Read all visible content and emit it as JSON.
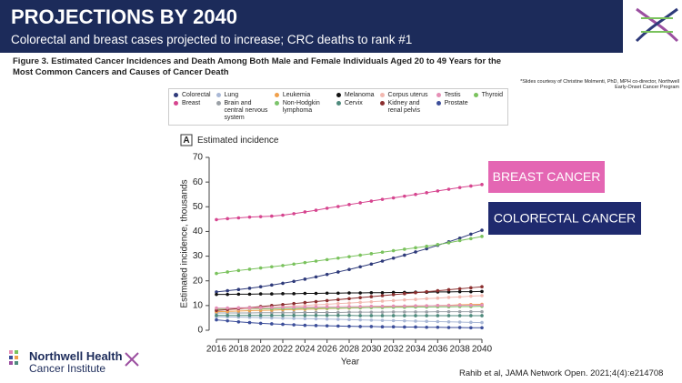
{
  "header": {
    "title": "PROJECTIONS BY 2040",
    "subtitle": "Colorectal and breast cases projected to increase; CRC deaths to rank #1"
  },
  "figure_caption": "Figure 3. Estimated Cancer Incidences and Death Among Both Male and Female Individuals Aged 20 to 49 Years for the Most Common Cancers and Causes of Cancer Death",
  "credit": "*Slides courtesy of Christine Molmenti, PhD, MPH co-director, Northwell Early-Onset Cancer Program",
  "logo": {
    "line1": "Northwell Health",
    "line2": "Cancer Institute"
  },
  "citation": "Rahib et al, JAMA Network Open. 2021;4(4):e214708",
  "chart_data": {
    "type": "line",
    "panel": "A",
    "title": "Estimated incidence",
    "x_label": "Year",
    "y_label": "Estimated incidence, thousands",
    "annotations": [
      {
        "text": "BREAST CANCER",
        "color": "#e466b3"
      },
      {
        "text": "COLORECTAL CANCER",
        "color": "#1f2a6e"
      }
    ],
    "x": [
      2016,
      2017,
      2018,
      2019,
      2020,
      2021,
      2022,
      2023,
      2024,
      2025,
      2026,
      2027,
      2028,
      2029,
      2030,
      2031,
      2032,
      2033,
      2034,
      2035,
      2036,
      2037,
      2038,
      2039,
      2040
    ],
    "xlim": [
      2016,
      2040
    ],
    "xticks": [
      2016,
      2018,
      2020,
      2022,
      2024,
      2026,
      2028,
      2030,
      2032,
      2034,
      2036,
      2038,
      2040
    ],
    "ylim": [
      0,
      70
    ],
    "yticks": [
      0,
      10,
      20,
      30,
      40,
      50,
      60,
      70
    ],
    "grid": false,
    "series": [
      {
        "name": "Colorectal",
        "color": "#2e3a7a",
        "values": [
          15.5,
          16.0,
          16.5,
          17.0,
          17.6,
          18.3,
          19.0,
          19.8,
          20.7,
          21.6,
          22.6,
          23.6,
          24.6,
          25.7,
          26.8,
          28.0,
          29.2,
          30.4,
          31.7,
          33.0,
          34.4,
          35.8,
          37.3,
          38.9,
          40.5
        ]
      },
      {
        "name": "Breast",
        "color": "#d6458f",
        "values": [
          44.8,
          45.2,
          45.5,
          45.8,
          46.0,
          46.2,
          46.6,
          47.2,
          47.9,
          48.6,
          49.4,
          50.1,
          50.9,
          51.6,
          52.3,
          53.0,
          53.6,
          54.3,
          55.0,
          55.7,
          56.4,
          57.1,
          57.8,
          58.4,
          59.0
        ]
      },
      {
        "name": "Lung",
        "color": "#a9b8d6",
        "values": [
          5.5,
          5.4,
          5.3,
          5.2,
          5.1,
          5.0,
          4.9,
          4.8,
          4.7,
          4.6,
          4.5,
          4.4,
          4.3,
          4.2,
          4.1,
          4.0,
          3.9,
          3.8,
          3.7,
          3.6,
          3.5,
          3.4,
          3.3,
          3.2,
          3.1
        ]
      },
      {
        "name": "Brain and central nervous system",
        "color": "#9aa0a6",
        "values": [
          7.0,
          7.0,
          7.0,
          7.0,
          7.1,
          7.1,
          7.1,
          7.1,
          7.2,
          7.2,
          7.2,
          7.2,
          7.3,
          7.3,
          7.3,
          7.3,
          7.4,
          7.4,
          7.4,
          7.4,
          7.5,
          7.5,
          7.5,
          7.5,
          7.5
        ]
      },
      {
        "name": "Leukemia",
        "color": "#f0a04b",
        "values": [
          7.5,
          7.6,
          7.8,
          7.9,
          8.0,
          8.1,
          8.3,
          8.4,
          8.5,
          8.6,
          8.8,
          8.9,
          9.0,
          9.1,
          9.3,
          9.4,
          9.5,
          9.6,
          9.8,
          9.9,
          10.0,
          10.1,
          10.3,
          10.4,
          10.5
        ]
      },
      {
        "name": "Non-Hodgkin lymphoma",
        "color": "#7cc46b",
        "values": [
          8.5,
          8.5,
          8.6,
          8.6,
          8.7,
          8.7,
          8.8,
          8.8,
          8.9,
          8.9,
          9.0,
          9.0,
          9.1,
          9.1,
          9.2,
          9.2,
          9.3,
          9.3,
          9.4,
          9.4,
          9.5,
          9.5,
          9.6,
          9.6,
          9.7
        ]
      },
      {
        "name": "Melanoma",
        "color": "#111111",
        "values": [
          14.5,
          14.5,
          14.6,
          14.6,
          14.7,
          14.7,
          14.8,
          14.8,
          14.9,
          14.9,
          15.0,
          15.0,
          15.1,
          15.1,
          15.2,
          15.2,
          15.3,
          15.3,
          15.4,
          15.4,
          15.5,
          15.5,
          15.6,
          15.6,
          15.7
        ]
      },
      {
        "name": "Cervix",
        "color": "#4e8a7c",
        "values": [
          6.0,
          6.0,
          6.0,
          6.0,
          6.0,
          6.0,
          6.0,
          6.0,
          6.0,
          6.0,
          6.0,
          6.0,
          6.0,
          5.9,
          5.9,
          5.9,
          5.9,
          5.9,
          5.9,
          5.9,
          5.9,
          5.9,
          5.9,
          5.9,
          5.9
        ]
      },
      {
        "name": "Corpus uterus",
        "color": "#f2b8b0",
        "values": [
          8.0,
          8.3,
          8.5,
          8.8,
          9.0,
          9.3,
          9.5,
          9.8,
          10.0,
          10.3,
          10.5,
          10.8,
          11.0,
          11.3,
          11.5,
          11.8,
          12.0,
          12.3,
          12.5,
          12.8,
          13.0,
          13.3,
          13.5,
          13.8,
          14.0
        ]
      },
      {
        "name": "Kidney and renal pelvis",
        "color": "#8b2f2f",
        "values": [
          8.0,
          8.4,
          8.8,
          9.2,
          9.6,
          10.0,
          10.4,
          10.8,
          11.2,
          11.6,
          12.0,
          12.4,
          12.8,
          13.2,
          13.6,
          14.0,
          14.4,
          14.8,
          15.2,
          15.6,
          16.0,
          16.4,
          16.8,
          17.2,
          17.6
        ]
      },
      {
        "name": "Testis",
        "color": "#e58fb6",
        "values": [
          9.0,
          9.0,
          9.1,
          9.1,
          9.2,
          9.2,
          9.3,
          9.3,
          9.4,
          9.4,
          9.5,
          9.5,
          9.6,
          9.6,
          9.7,
          9.7,
          9.8,
          9.8,
          9.9,
          9.9,
          10.0,
          10.0,
          10.1,
          10.1,
          10.2
        ]
      },
      {
        "name": "Prostate",
        "color": "#3c4e9a",
        "values": [
          4.2,
          3.8,
          3.4,
          3.1,
          2.8,
          2.6,
          2.4,
          2.2,
          2.0,
          1.9,
          1.8,
          1.7,
          1.6,
          1.5,
          1.5,
          1.4,
          1.4,
          1.3,
          1.3,
          1.2,
          1.2,
          1.1,
          1.1,
          1.0,
          1.0
        ]
      },
      {
        "name": "Thyroid",
        "color": "#7ac25d",
        "values": [
          23.0,
          23.6,
          24.2,
          24.7,
          25.2,
          25.7,
          26.2,
          26.8,
          27.4,
          28.0,
          28.6,
          29.2,
          29.8,
          30.4,
          31.0,
          31.6,
          32.2,
          32.8,
          33.4,
          34.0,
          34.7,
          35.4,
          36.3,
          37.1,
          38.0
        ]
      }
    ]
  }
}
